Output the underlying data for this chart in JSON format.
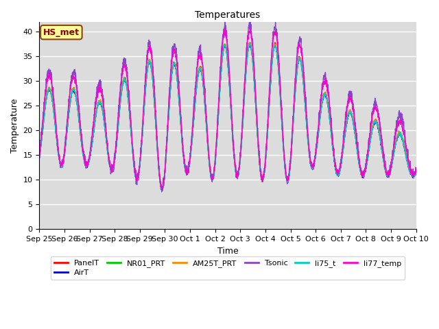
{
  "title": "Temperatures",
  "xlabel": "Time",
  "ylabel": "Temperature",
  "ylim": [
    0,
    42
  ],
  "yticks": [
    0,
    5,
    10,
    15,
    20,
    25,
    30,
    35,
    40
  ],
  "bg_color": "#dcdcdc",
  "fig_color": "#ffffff",
  "annotation_text": "HS_met",
  "annotation_bg": "#ffff99",
  "annotation_border": "#8B4513",
  "series_names": [
    "PanelT",
    "AirT",
    "NR01_PRT",
    "AM25T_PRT",
    "Tsonic",
    "li75_t",
    "li77_temp"
  ],
  "series_colors": [
    "#ff0000",
    "#0000cc",
    "#00cc00",
    "#ff8800",
    "#8844cc",
    "#00cccc",
    "#ff00cc"
  ],
  "series_lw": [
    1.0,
    1.0,
    1.0,
    1.0,
    1.0,
    1.0,
    1.0
  ],
  "date_labels": [
    "Sep 25",
    "Sep 26",
    "Sep 27",
    "Sep 28",
    "Sep 29",
    "Sep 30",
    "Oct 1",
    "Oct 2",
    "Oct 3",
    "Oct 4",
    "Oct 5",
    "Oct 6",
    "Oct 7",
    "Oct 8",
    "Oct 9",
    "Oct 10"
  ],
  "date_positions": [
    0,
    1,
    2,
    3,
    4,
    5,
    6,
    7,
    8,
    9,
    10,
    11,
    12,
    13,
    14,
    15
  ],
  "n_days": 15,
  "pts_per_day": 144,
  "daily_max_base": [
    27,
    31,
    24,
    29,
    33,
    36,
    30,
    37,
    38,
    37,
    38,
    29,
    25,
    22,
    22,
    15
  ],
  "daily_min_base": [
    13,
    13,
    13,
    12,
    10,
    8,
    12,
    10,
    11,
    10,
    10,
    13,
    11,
    11,
    11,
    11
  ],
  "tsonic_extra_peak": 3.5,
  "li77_extra_peak": 2.5,
  "peak_phase": 0.38,
  "trough_phase": 0.08,
  "grid_color": "#ffffff",
  "grid_lw": 1.0
}
